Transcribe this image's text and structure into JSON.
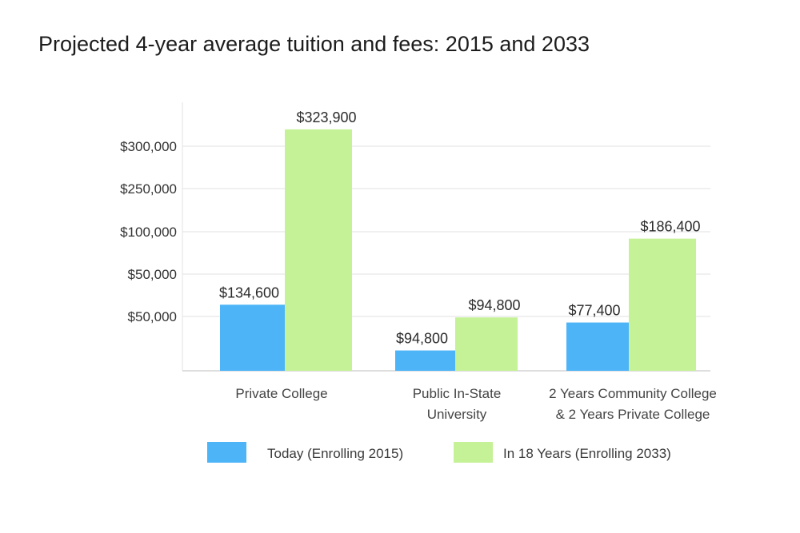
{
  "chart_data": {
    "type": "bar",
    "title": "Projected 4-year average tuition and fees: 2015 and 2033",
    "xlabel": "",
    "ylabel": "",
    "categories": [
      [
        "Private College"
      ],
      [
        "Public In-State",
        "University"
      ],
      [
        "2 Years Community College",
        "& 2 Years Private College"
      ]
    ],
    "series": [
      {
        "name": "Today (Enrolling 2015)",
        "color": "#4db4f8",
        "values": [
          134600,
          94800,
          77400
        ],
        "labels": [
          "$134,600",
          "$94,800",
          "$77,400"
        ],
        "shown_level": [
          0.26,
          0.08,
          0.19
        ]
      },
      {
        "name": "In 18 Years (Enrolling 2033)",
        "color": "#c5f197",
        "values": [
          323900,
          94800,
          186400
        ],
        "labels": [
          "$323,900",
          "$94,800",
          "$186,400"
        ],
        "shown_level": [
          0.95,
          0.21,
          0.52
        ]
      }
    ],
    "y_ticks": [
      "$300,000",
      "$250,000",
      "$100,000",
      "$50,000",
      "$50,000"
    ],
    "grid": true,
    "legend_position": "bottom"
  }
}
